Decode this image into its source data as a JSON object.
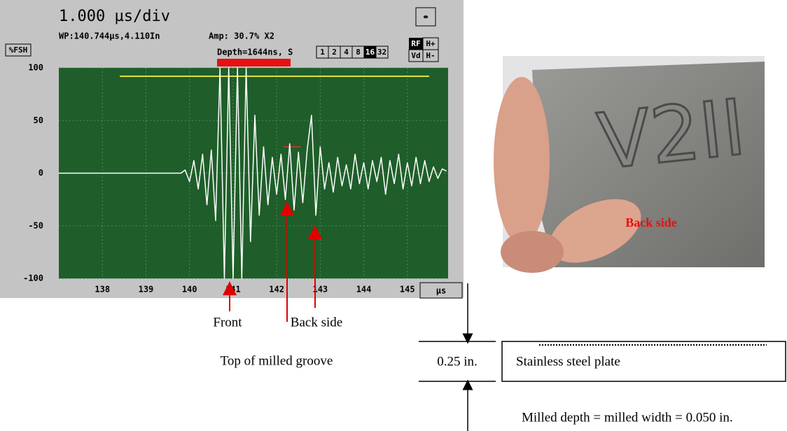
{
  "chart_data": {
    "type": "line",
    "title": "1.000 µs/div",
    "status": {
      "wp": "WP:140.744µs,4.110In",
      "amp": "Amp: 30.7% X2",
      "depth": "Depth=1644ns, S",
      "scale_buttons": [
        "1",
        "2",
        "4",
        "8",
        "16",
        "32"
      ],
      "rf": "RF",
      "h_plus": "H+",
      "vd": "Vd",
      "h_minus": "H-",
      "fsh": "%FSH",
      "unit": "µs"
    },
    "xlim": [
      137,
      146
    ],
    "ylim": [
      -100,
      100
    ],
    "xticks": [
      138,
      139,
      140,
      141,
      142,
      143,
      144,
      145
    ],
    "yticks": [
      -100,
      -50,
      0,
      50,
      100
    ],
    "grid": true,
    "x": [
      137,
      139.8,
      139.9,
      140.0,
      140.1,
      140.2,
      140.3,
      140.4,
      140.5,
      140.6,
      140.7,
      140.8,
      140.9,
      141.0,
      141.1,
      141.2,
      141.3,
      141.4,
      141.5,
      141.6,
      141.7,
      141.8,
      141.9,
      142.0,
      142.1,
      142.2,
      142.3,
      142.4,
      142.5,
      142.6,
      142.7,
      142.8,
      142.9,
      143.0,
      143.1,
      143.2,
      143.3,
      143.4,
      143.5,
      143.6,
      143.7,
      143.8,
      143.9,
      144.0,
      144.1,
      144.2,
      144.3,
      144.4,
      144.5,
      144.6,
      144.7,
      144.8,
      144.9,
      145.0,
      145.1,
      145.2,
      145.3,
      145.4,
      145.5,
      145.6,
      145.7,
      145.8,
      145.9
    ],
    "series": [
      {
        "color": "#ffffff",
        "values": [
          0,
          0,
          3,
          -8,
          12,
          -15,
          18,
          -30,
          22,
          -45,
          100,
          -100,
          100,
          -100,
          100,
          -100,
          100,
          -65,
          55,
          -40,
          25,
          -30,
          15,
          -20,
          18,
          -25,
          28,
          -35,
          20,
          -28,
          22,
          55,
          -40,
          25,
          -15,
          10,
          -18,
          15,
          -12,
          8,
          -15,
          18,
          -10,
          10,
          -15,
          12,
          -8,
          15,
          -20,
          12,
          -10,
          18,
          -15,
          10,
          -12,
          15,
          -10,
          12,
          -8,
          6,
          -5,
          4,
          2
        ]
      }
    ],
    "gate": {
      "x": [
        138.4,
        145.5
      ],
      "y": 92,
      "color": "#e0e040"
    },
    "marker": {
      "x": [
        142.15,
        142.55
      ],
      "y": 25,
      "color": "#e03030"
    },
    "annotations": [
      "Front",
      "Back side",
      "Top of milled groove"
    ]
  },
  "photo": {
    "engraving": "V2II",
    "label": "Back side"
  },
  "diagram": {
    "thickness": "0.25 in.",
    "plate": "Stainless steel plate",
    "note": "Milled depth = milled width = 0.050 in."
  }
}
